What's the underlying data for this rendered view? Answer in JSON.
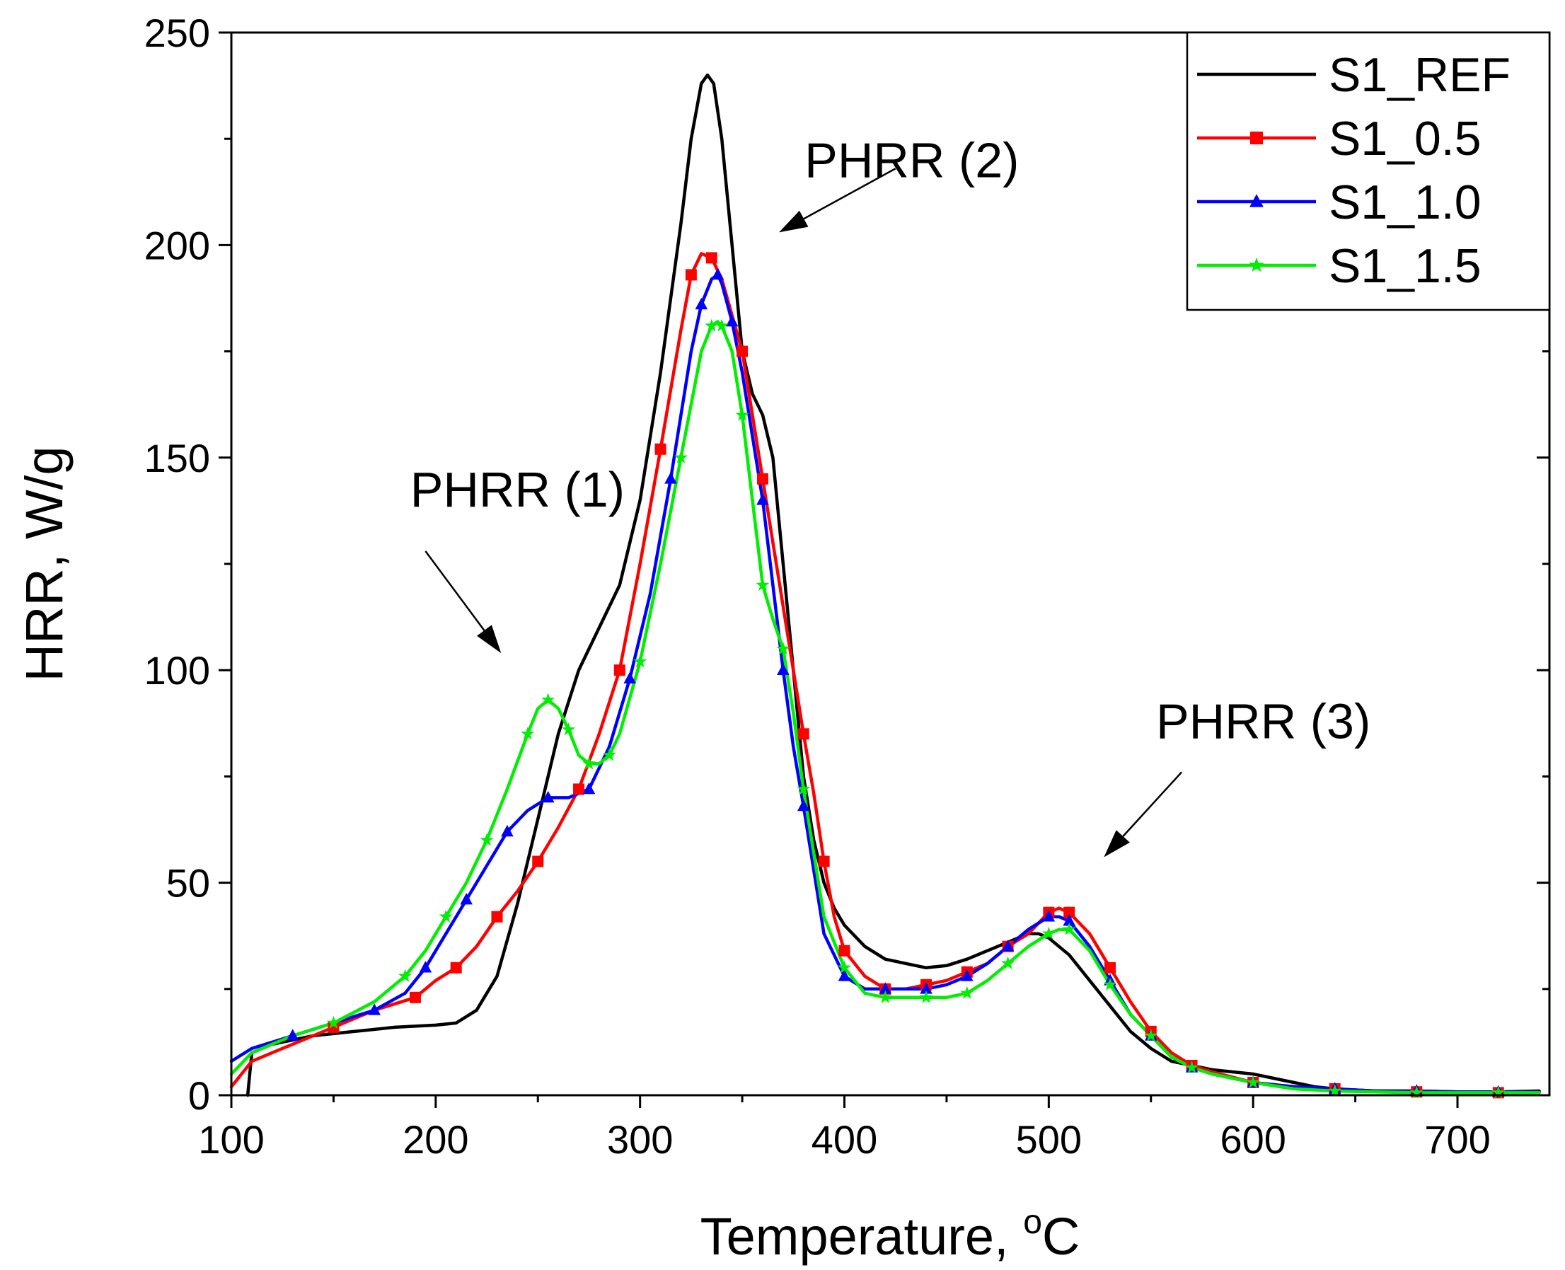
{
  "chart_data": {
    "type": "line",
    "xlabel": "Temperature, ",
    "xlabel_unit": "C",
    "xlabel_degree": "o",
    "ylabel": "HRR, W/g",
    "xlim": [
      100,
      745
    ],
    "ylim": [
      0,
      250
    ],
    "x_ticks": [
      100,
      200,
      300,
      400,
      500,
      600,
      700
    ],
    "y_ticks": [
      0,
      50,
      100,
      150,
      200,
      250
    ],
    "x_tick_labels": [
      "100",
      "200",
      "300",
      "400",
      "500",
      "600",
      "700"
    ],
    "y_tick_labels": [
      "0",
      "50",
      "100",
      "150",
      "200",
      "250"
    ],
    "grid": false,
    "legend_position": "top-right",
    "series": [
      {
        "name": "S1_REF",
        "color": "#000000",
        "marker": "none",
        "x": [
          108,
          110,
          120,
          140,
          160,
          180,
          200,
          210,
          220,
          230,
          240,
          250,
          260,
          270,
          280,
          290,
          300,
          310,
          320,
          325,
          330,
          333,
          336,
          340,
          345,
          350,
          355,
          360,
          365,
          370,
          375,
          380,
          385,
          390,
          395,
          400,
          410,
          420,
          430,
          440,
          450,
          460,
          470,
          480,
          490,
          495,
          500,
          510,
          520,
          530,
          540,
          550,
          560,
          570,
          580,
          590,
          600,
          610,
          620,
          630,
          640,
          660,
          680,
          700,
          720,
          740
        ],
        "y": [
          0,
          10,
          12,
          14,
          15,
          16,
          16.5,
          17,
          20,
          28,
          45,
          65,
          85,
          100,
          110,
          120,
          140,
          170,
          205,
          225,
          238,
          240,
          238,
          225,
          200,
          175,
          165,
          160,
          150,
          125,
          100,
          75,
          60,
          50,
          44,
          40,
          35,
          32,
          31,
          30,
          30.5,
          32,
          34,
          36,
          38,
          38,
          37,
          33,
          27,
          21,
          15,
          11,
          8,
          7,
          6,
          5.5,
          5,
          4,
          3,
          2,
          1.5,
          1,
          1,
          0.8,
          0.8,
          1
        ]
      },
      {
        "name": "S1_0.5",
        "color": "#ff0000",
        "marker": "square",
        "x": [
          100,
          110,
          130,
          150,
          170,
          190,
          200,
          210,
          220,
          230,
          240,
          250,
          260,
          270,
          280,
          290,
          300,
          310,
          320,
          325,
          330,
          335,
          340,
          350,
          355,
          360,
          370,
          380,
          385,
          390,
          395,
          400,
          410,
          420,
          430,
          440,
          450,
          460,
          470,
          480,
          490,
          500,
          505,
          510,
          520,
          530,
          540,
          550,
          560,
          570,
          580,
          600,
          620,
          640,
          660,
          680,
          700,
          720,
          740
        ],
        "y": [
          2,
          8,
          12,
          16,
          20,
          23,
          27,
          30,
          35,
          42,
          48,
          55,
          63,
          72,
          85,
          100,
          125,
          152,
          180,
          193,
          198,
          197,
          192,
          175,
          160,
          145,
          115,
          85,
          71,
          55,
          42,
          34,
          28,
          25,
          25,
          26,
          27,
          29,
          31,
          35,
          38,
          43,
          44,
          43,
          38,
          30,
          22,
          15,
          10,
          7,
          5.5,
          3,
          2,
          1.5,
          1,
          0.8,
          0.8,
          0.6,
          0.6
        ]
      },
      {
        "name": "S1_1.0",
        "color": "#0000ff",
        "marker": "triangle",
        "x": [
          100,
          110,
          130,
          150,
          170,
          185,
          195,
          205,
          215,
          225,
          235,
          245,
          255,
          265,
          275,
          285,
          295,
          305,
          315,
          325,
          330,
          335,
          338,
          340,
          345,
          350,
          360,
          365,
          370,
          375,
          380,
          390,
          400,
          410,
          420,
          430,
          440,
          450,
          460,
          470,
          480,
          490,
          500,
          505,
          510,
          520,
          530,
          540,
          550,
          560,
          570,
          580,
          600,
          620,
          640,
          660,
          680,
          700,
          720,
          740
        ],
        "y": [
          8,
          11,
          14,
          17,
          20,
          24,
          30,
          38,
          46,
          54,
          62,
          67,
          70,
          70,
          72,
          82,
          98,
          118,
          145,
          175,
          186,
          192,
          193,
          191,
          182,
          170,
          140,
          120,
          100,
          82,
          68,
          38,
          28,
          25,
          25,
          25,
          25,
          26,
          28,
          31,
          35,
          39,
          42,
          42,
          41,
          35,
          27,
          19,
          14,
          9,
          6.5,
          5,
          3,
          2,
          1.5,
          1,
          1,
          0.8,
          0.8,
          0.8
        ]
      },
      {
        "name": "S1_1.5",
        "color": "#00ee00",
        "marker": "star",
        "x": [
          100,
          110,
          130,
          150,
          170,
          185,
          195,
          205,
          215,
          225,
          235,
          245,
          250,
          255,
          260,
          265,
          270,
          275,
          280,
          285,
          290,
          300,
          310,
          320,
          330,
          335,
          338,
          340,
          345,
          350,
          355,
          360,
          365,
          370,
          375,
          380,
          390,
          400,
          410,
          420,
          430,
          440,
          450,
          460,
          470,
          480,
          490,
          500,
          505,
          510,
          520,
          530,
          540,
          550,
          560,
          570,
          580,
          600,
          620,
          640,
          660,
          680,
          700,
          720,
          740
        ],
        "y": [
          5,
          10,
          14,
          17,
          22,
          28,
          34,
          42,
          50,
          60,
          72,
          85,
          91,
          93,
          91,
          86,
          80,
          78,
          78,
          80,
          85,
          102,
          125,
          150,
          175,
          181,
          182,
          181,
          175,
          160,
          140,
          120,
          112,
          105,
          90,
          72,
          42,
          30,
          24,
          23,
          23,
          23,
          23,
          24,
          27,
          31,
          35,
          38,
          39,
          39,
          34,
          26,
          19,
          14,
          9,
          6.5,
          5,
          3,
          1.5,
          1,
          0.8,
          0.6,
          0.6,
          0.6,
          0.6
        ]
      }
    ],
    "annotations": [
      {
        "text": "PHRR (1)",
        "label_x": 240,
        "label_y": 138.5,
        "arrow_from": [
          195,
          128
        ],
        "arrow_to": [
          232,
          104
        ]
      },
      {
        "text": "PHRR (2)",
        "label_x": 433,
        "label_y": 216,
        "arrow_from": [
          425,
          218
        ],
        "arrow_to": [
          368,
          203
        ]
      },
      {
        "text": "PHRR (3)",
        "label_x": 605,
        "label_y": 84,
        "arrow_from": [
          565,
          76
        ],
        "arrow_to": [
          527,
          56
        ]
      }
    ]
  }
}
